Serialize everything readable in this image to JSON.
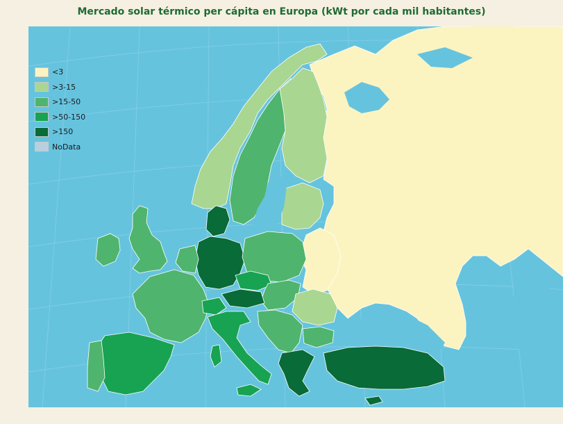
{
  "title": "Mercado solar térmico per cápita en Europa (kWt por cada mil habitantes)",
  "colors": {
    "sea": "#66c3de",
    "nonEU": "#fbf4c0",
    "c1": "#fbf4c0",
    "c2": "#a9d691",
    "c3": "#4fb46e",
    "c4": "#17a352",
    "c5": "#096b37",
    "nodata": "#b8cfe0",
    "border": "#ffffff"
  },
  "legend": [
    {
      "label": "<3",
      "color": "#fbf4c0"
    },
    {
      "label": ">3-15",
      "color": "#a9d691"
    },
    {
      "label": ">15-50",
      "color": "#4fb46e"
    },
    {
      "label": ">50-150",
      "color": "#17a352"
    },
    {
      "label": ">150",
      "color": "#096b37"
    },
    {
      "label": "NoData",
      "color": "#b8cfe0"
    }
  ]
}
